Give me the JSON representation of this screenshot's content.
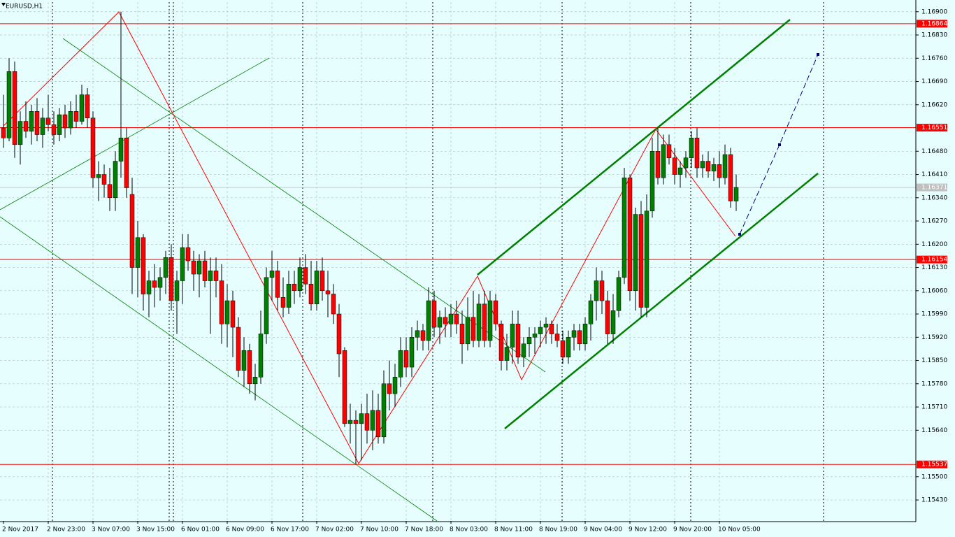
{
  "chart_data": {
    "type": "candlestick",
    "title": "EURUSD,H1",
    "x_labels": [
      "2 Nov 2017",
      "2 Nov 23:00",
      "3 Nov 07:00",
      "3 Nov 15:00",
      "6 Nov 01:00",
      "6 Nov 09:00",
      "6 Nov 17:00",
      "7 Nov 02:00",
      "7 Nov 10:00",
      "7 Nov 18:00",
      "8 Nov 03:00",
      "8 Nov 11:00",
      "8 Nov 19:00",
      "9 Nov 04:00",
      "9 Nov 12:00",
      "9 Nov 20:00",
      "10 Nov 05:00"
    ],
    "ohlc": [
      [
        1.1655,
        1.1665,
        1.1649,
        1.1652
      ],
      [
        1.1652,
        1.1676,
        1.1651,
        1.1672
      ],
      [
        1.1672,
        1.1675,
        1.1646,
        1.165
      ],
      [
        1.165,
        1.166,
        1.1644,
        1.1657
      ],
      [
        1.1657,
        1.1663,
        1.1652,
        1.1654
      ],
      [
        1.1654,
        1.1662,
        1.165,
        1.166
      ],
      [
        1.166,
        1.1664,
        1.1651,
        1.1653
      ],
      [
        1.1653,
        1.1661,
        1.1649,
        1.1658
      ],
      [
        1.1658,
        1.1665,
        1.1654,
        1.1656
      ],
      [
        1.1656,
        1.166,
        1.165,
        1.1653
      ],
      [
        1.1653,
        1.1661,
        1.1651,
        1.1659
      ],
      [
        1.1659,
        1.1662,
        1.1652,
        1.1655
      ],
      [
        1.1655,
        1.1663,
        1.1653,
        1.166
      ],
      [
        1.166,
        1.1665,
        1.1655,
        1.1657
      ],
      [
        1.1657,
        1.1668,
        1.1656,
        1.1665
      ],
      [
        1.1665,
        1.1667,
        1.1655,
        1.1658
      ],
      [
        1.1658,
        1.166,
        1.1637,
        1.164
      ],
      [
        1.164,
        1.1645,
        1.1633,
        1.1641
      ],
      [
        1.1641,
        1.1644,
        1.1634,
        1.1638
      ],
      [
        1.1638,
        1.1643,
        1.163,
        1.1634
      ],
      [
        1.1634,
        1.1648,
        1.163,
        1.1645
      ],
      [
        1.1645,
        1.169,
        1.164,
        1.1652
      ],
      [
        1.1652,
        1.1655,
        1.1634,
        1.1637
      ],
      [
        1.1635,
        1.164,
        1.1605,
        1.1613
      ],
      [
        1.1613,
        1.1627,
        1.1604,
        1.1622
      ],
      [
        1.1622,
        1.1623,
        1.16,
        1.1605
      ],
      [
        1.1605,
        1.1612,
        1.1598,
        1.1609
      ],
      [
        1.1609,
        1.1614,
        1.1601,
        1.1607
      ],
      [
        1.1607,
        1.1613,
        1.1603,
        1.161
      ],
      [
        1.161,
        1.1618,
        1.1605,
        1.1616
      ],
      [
        1.1616,
        1.162,
        1.16,
        1.1603
      ],
      [
        1.1603,
        1.1612,
        1.1593,
        1.1609
      ],
      [
        1.1609,
        1.1623,
        1.1602,
        1.1619
      ],
      [
        1.1619,
        1.1623,
        1.1612,
        1.1615
      ],
      [
        1.1615,
        1.1618,
        1.1606,
        1.1611
      ],
      [
        1.1611,
        1.1617,
        1.1604,
        1.1615
      ],
      [
        1.1615,
        1.1618,
        1.1607,
        1.1609
      ],
      [
        1.1609,
        1.1616,
        1.1593,
        1.1612
      ],
      [
        1.1612,
        1.1616,
        1.1604,
        1.1609
      ],
      [
        1.1609,
        1.1614,
        1.159,
        1.1596
      ],
      [
        1.1596,
        1.1608,
        1.1589,
        1.1603
      ],
      [
        1.1603,
        1.1606,
        1.1586,
        1.1595
      ],
      [
        1.1595,
        1.1598,
        1.158,
        1.1582
      ],
      [
        1.1582,
        1.1592,
        1.1577,
        1.1588
      ],
      [
        1.1588,
        1.159,
        1.1575,
        1.1578
      ],
      [
        1.1578,
        1.1584,
        1.1573,
        1.158
      ],
      [
        1.158,
        1.16,
        1.1578,
        1.1593
      ],
      [
        1.1593,
        1.1613,
        1.159,
        1.161
      ],
      [
        1.161,
        1.1618,
        1.1603,
        1.1612
      ],
      [
        1.1612,
        1.1615,
        1.16,
        1.1604
      ],
      [
        1.1604,
        1.161,
        1.1598,
        1.1601
      ],
      [
        1.1601,
        1.1612,
        1.1599,
        1.1608
      ],
      [
        1.1608,
        1.1612,
        1.1602,
        1.1606
      ],
      [
        1.1606,
        1.1616,
        1.1604,
        1.1613
      ],
      [
        1.1613,
        1.1617,
        1.1605,
        1.1608
      ],
      [
        1.1608,
        1.1615,
        1.16,
        1.1602
      ],
      [
        1.1602,
        1.1615,
        1.16,
        1.1612
      ],
      [
        1.1612,
        1.1616,
        1.1603,
        1.1606
      ],
      [
        1.1606,
        1.1612,
        1.1598,
        1.1605
      ],
      [
        1.1605,
        1.1608,
        1.1596,
        1.1599
      ],
      [
        1.1599,
        1.1602,
        1.158,
        1.1587
      ],
      [
        1.1588,
        1.1589,
        1.1565,
        1.1566
      ],
      [
        1.1566,
        1.1572,
        1.156,
        1.1567
      ],
      [
        1.1567,
        1.157,
        1.15537,
        1.1566
      ],
      [
        1.1566,
        1.1572,
        1.1555,
        1.1569
      ],
      [
        1.1569,
        1.1575,
        1.156,
        1.1564
      ],
      [
        1.1564,
        1.1576,
        1.1558,
        1.157
      ],
      [
        1.157,
        1.1575,
        1.156,
        1.1562
      ],
      [
        1.1562,
        1.1582,
        1.156,
        1.1578
      ],
      [
        1.1578,
        1.1585,
        1.157,
        1.1575
      ],
      [
        1.1575,
        1.1584,
        1.1571,
        1.158
      ],
      [
        1.158,
        1.1592,
        1.1577,
        1.1588
      ],
      [
        1.1588,
        1.1592,
        1.158,
        1.1583
      ],
      [
        1.1583,
        1.1595,
        1.158,
        1.1592
      ],
      [
        1.1592,
        1.1597,
        1.1588,
        1.1594
      ],
      [
        1.1594,
        1.1596,
        1.1588,
        1.1591
      ],
      [
        1.1591,
        1.1607,
        1.1588,
        1.1603
      ],
      [
        1.1603,
        1.1606,
        1.1592,
        1.1595
      ],
      [
        1.1595,
        1.16,
        1.159,
        1.1598
      ],
      [
        1.1598,
        1.1601,
        1.1592,
        1.1596
      ],
      [
        1.1596,
        1.1602,
        1.1592,
        1.1599
      ],
      [
        1.1599,
        1.1603,
        1.1593,
        1.1596
      ],
      [
        1.1596,
        1.16,
        1.1584,
        1.159
      ],
      [
        1.159,
        1.1604,
        1.1588,
        1.1598
      ],
      [
        1.1598,
        1.1606,
        1.1589,
        1.1591
      ],
      [
        1.1591,
        1.1605,
        1.1589,
        1.1602
      ],
      [
        1.1602,
        1.1606,
        1.1589,
        1.1591
      ],
      [
        1.1591,
        1.1606,
        1.1589,
        1.1603
      ],
      [
        1.1603,
        1.1605,
        1.1594,
        1.1596
      ],
      [
        1.1596,
        1.1597,
        1.1582,
        1.1585
      ],
      [
        1.1585,
        1.1593,
        1.1582,
        1.1589
      ],
      [
        1.1589,
        1.16,
        1.1584,
        1.1596
      ],
      [
        1.1596,
        1.16,
        1.1584,
        1.1586
      ],
      [
        1.1586,
        1.1592,
        1.1583,
        1.159
      ],
      [
        1.159,
        1.1595,
        1.1586,
        1.1592
      ],
      [
        1.1592,
        1.1595,
        1.1587,
        1.1593
      ],
      [
        1.1593,
        1.1597,
        1.1589,
        1.1595
      ],
      [
        1.1595,
        1.1598,
        1.159,
        1.1596
      ],
      [
        1.1596,
        1.1597,
        1.159,
        1.1593
      ],
      [
        1.1593,
        1.1596,
        1.1589,
        1.1591
      ],
      [
        1.1591,
        1.1594,
        1.1584,
        1.1586
      ],
      [
        1.1586,
        1.1594,
        1.1584,
        1.1592
      ],
      [
        1.1592,
        1.1596,
        1.1588,
        1.1594
      ],
      [
        1.1594,
        1.1596,
        1.1588,
        1.159
      ],
      [
        1.159,
        1.1598,
        1.1588,
        1.1596
      ],
      [
        1.1596,
        1.1605,
        1.1591,
        1.1603
      ],
      [
        1.1603,
        1.1613,
        1.1597,
        1.1609
      ],
      [
        1.1609,
        1.1612,
        1.1599,
        1.1603
      ],
      [
        1.1603,
        1.1606,
        1.159,
        1.1593
      ],
      [
        1.1593,
        1.1605,
        1.159,
        1.16
      ],
      [
        1.16,
        1.1612,
        1.1598,
        1.161
      ],
      [
        1.161,
        1.1643,
        1.1608,
        1.164
      ],
      [
        1.164,
        1.1641,
        1.1603,
        1.1606
      ],
      [
        1.1606,
        1.1631,
        1.16,
        1.1629
      ],
      [
        1.1629,
        1.1633,
        1.1598,
        1.1601
      ],
      [
        1.1601,
        1.1635,
        1.1598,
        1.163
      ],
      [
        1.163,
        1.1652,
        1.1628,
        1.1648
      ],
      [
        1.1648,
        1.16551,
        1.1638,
        1.164
      ],
      [
        1.164,
        1.1653,
        1.1638,
        1.165
      ],
      [
        1.165,
        1.1653,
        1.1644,
        1.1646
      ],
      [
        1.1646,
        1.1649,
        1.1638,
        1.1641
      ],
      [
        1.1641,
        1.1645,
        1.1637,
        1.1643
      ],
      [
        1.1643,
        1.1648,
        1.164,
        1.1646
      ],
      [
        1.1646,
        1.1654,
        1.1643,
        1.1652
      ],
      [
        1.1652,
        1.1655,
        1.164,
        1.1643
      ],
      [
        1.1643,
        1.1647,
        1.164,
        1.1645
      ],
      [
        1.1645,
        1.1648,
        1.164,
        1.1642
      ],
      [
        1.1642,
        1.1646,
        1.1639,
        1.1644
      ],
      [
        1.1644,
        1.1648,
        1.1637,
        1.164
      ],
      [
        1.164,
        1.165,
        1.1638,
        1.1647
      ],
      [
        1.1647,
        1.1649,
        1.1631,
        1.1633
      ],
      [
        1.1633,
        1.1641,
        1.163,
        1.16371
      ]
    ],
    "ylim": [
      1.15367,
      1.16929
    ],
    "yticks": [
      {
        "value": 1.169,
        "label": "1.16900"
      },
      {
        "value": 1.1683,
        "label": "1.16830"
      },
      {
        "value": 1.1676,
        "label": "1.16760"
      },
      {
        "value": 1.1669,
        "label": "1.16690"
      },
      {
        "value": 1.1662,
        "label": "1.16620"
      },
      {
        "value": 1.1648,
        "label": "1.16480"
      },
      {
        "value": 1.1641,
        "label": "1.16410"
      },
      {
        "value": 1.1634,
        "label": "1.16340"
      },
      {
        "value": 1.1627,
        "label": "1.16270"
      },
      {
        "value": 1.162,
        "label": "1.16200"
      },
      {
        "value": 1.1613,
        "label": "1.16130"
      },
      {
        "value": 1.1606,
        "label": "1.16060"
      },
      {
        "value": 1.1599,
        "label": "1.15990"
      },
      {
        "value": 1.1592,
        "label": "1.15920"
      },
      {
        "value": 1.1585,
        "label": "1.15850"
      },
      {
        "value": 1.1578,
        "label": "1.15780"
      },
      {
        "value": 1.1571,
        "label": "1.15710"
      },
      {
        "value": 1.1564,
        "label": "1.15640"
      },
      {
        "value": 1.155,
        "label": "1.15500"
      },
      {
        "value": 1.1543,
        "label": "1.15430"
      }
    ],
    "hlines": {
      "values": [
        1.16864,
        1.16551,
        1.16154,
        1.15537
      ],
      "value_labels": [
        "1.16864",
        "1.16551",
        "1.16154",
        "1.15537"
      ],
      "color": "#ff0000"
    },
    "last_price": {
      "value": 1.16371,
      "label": "1.16371"
    },
    "up_color": "#008000",
    "down_color": "#ff0000",
    "wick_color": "#000000",
    "grid": true
  }
}
